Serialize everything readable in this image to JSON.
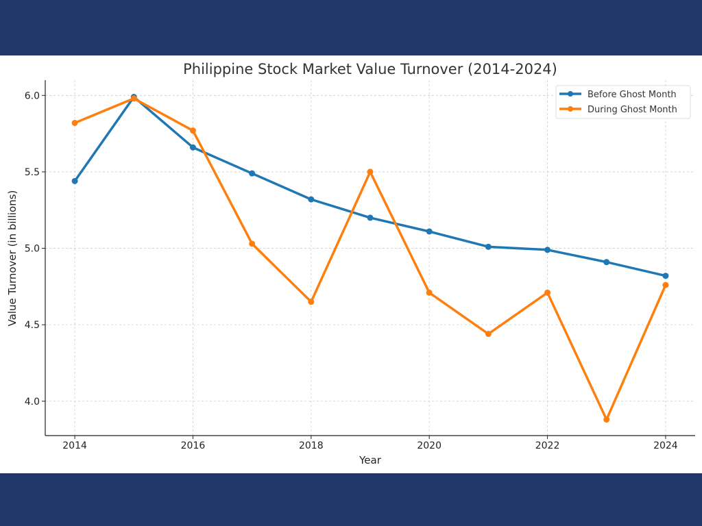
{
  "chart_data": {
    "type": "line",
    "title": "Philippine Stock Market Value Turnover (2014-2024)",
    "xlabel": "Year",
    "ylabel": "Value Turnover (in billions)",
    "x": [
      2014,
      2015,
      2016,
      2017,
      2018,
      2019,
      2020,
      2021,
      2022,
      2023,
      2024
    ],
    "xticks": [
      2014,
      2016,
      2018,
      2020,
      2022,
      2024
    ],
    "yticks": [
      4.0,
      4.5,
      5.0,
      5.5,
      6.0
    ],
    "xlim": [
      2013.5,
      2024.5
    ],
    "ylim": [
      3.775,
      6.1
    ],
    "grid": true,
    "legend_position": "top-right",
    "series": [
      {
        "name": "Before Ghost Month",
        "color": "#1f77b4",
        "values": [
          5.44,
          5.99,
          5.66,
          5.49,
          5.32,
          5.2,
          5.11,
          5.01,
          4.99,
          4.91,
          4.82
        ]
      },
      {
        "name": "During Ghost Month",
        "color": "#ff7f0e",
        "values": [
          5.82,
          5.98,
          5.77,
          5.03,
          4.65,
          5.5,
          4.71,
          4.44,
          4.71,
          3.88,
          4.76
        ]
      }
    ]
  },
  "colors": {
    "band": "#21366a"
  }
}
